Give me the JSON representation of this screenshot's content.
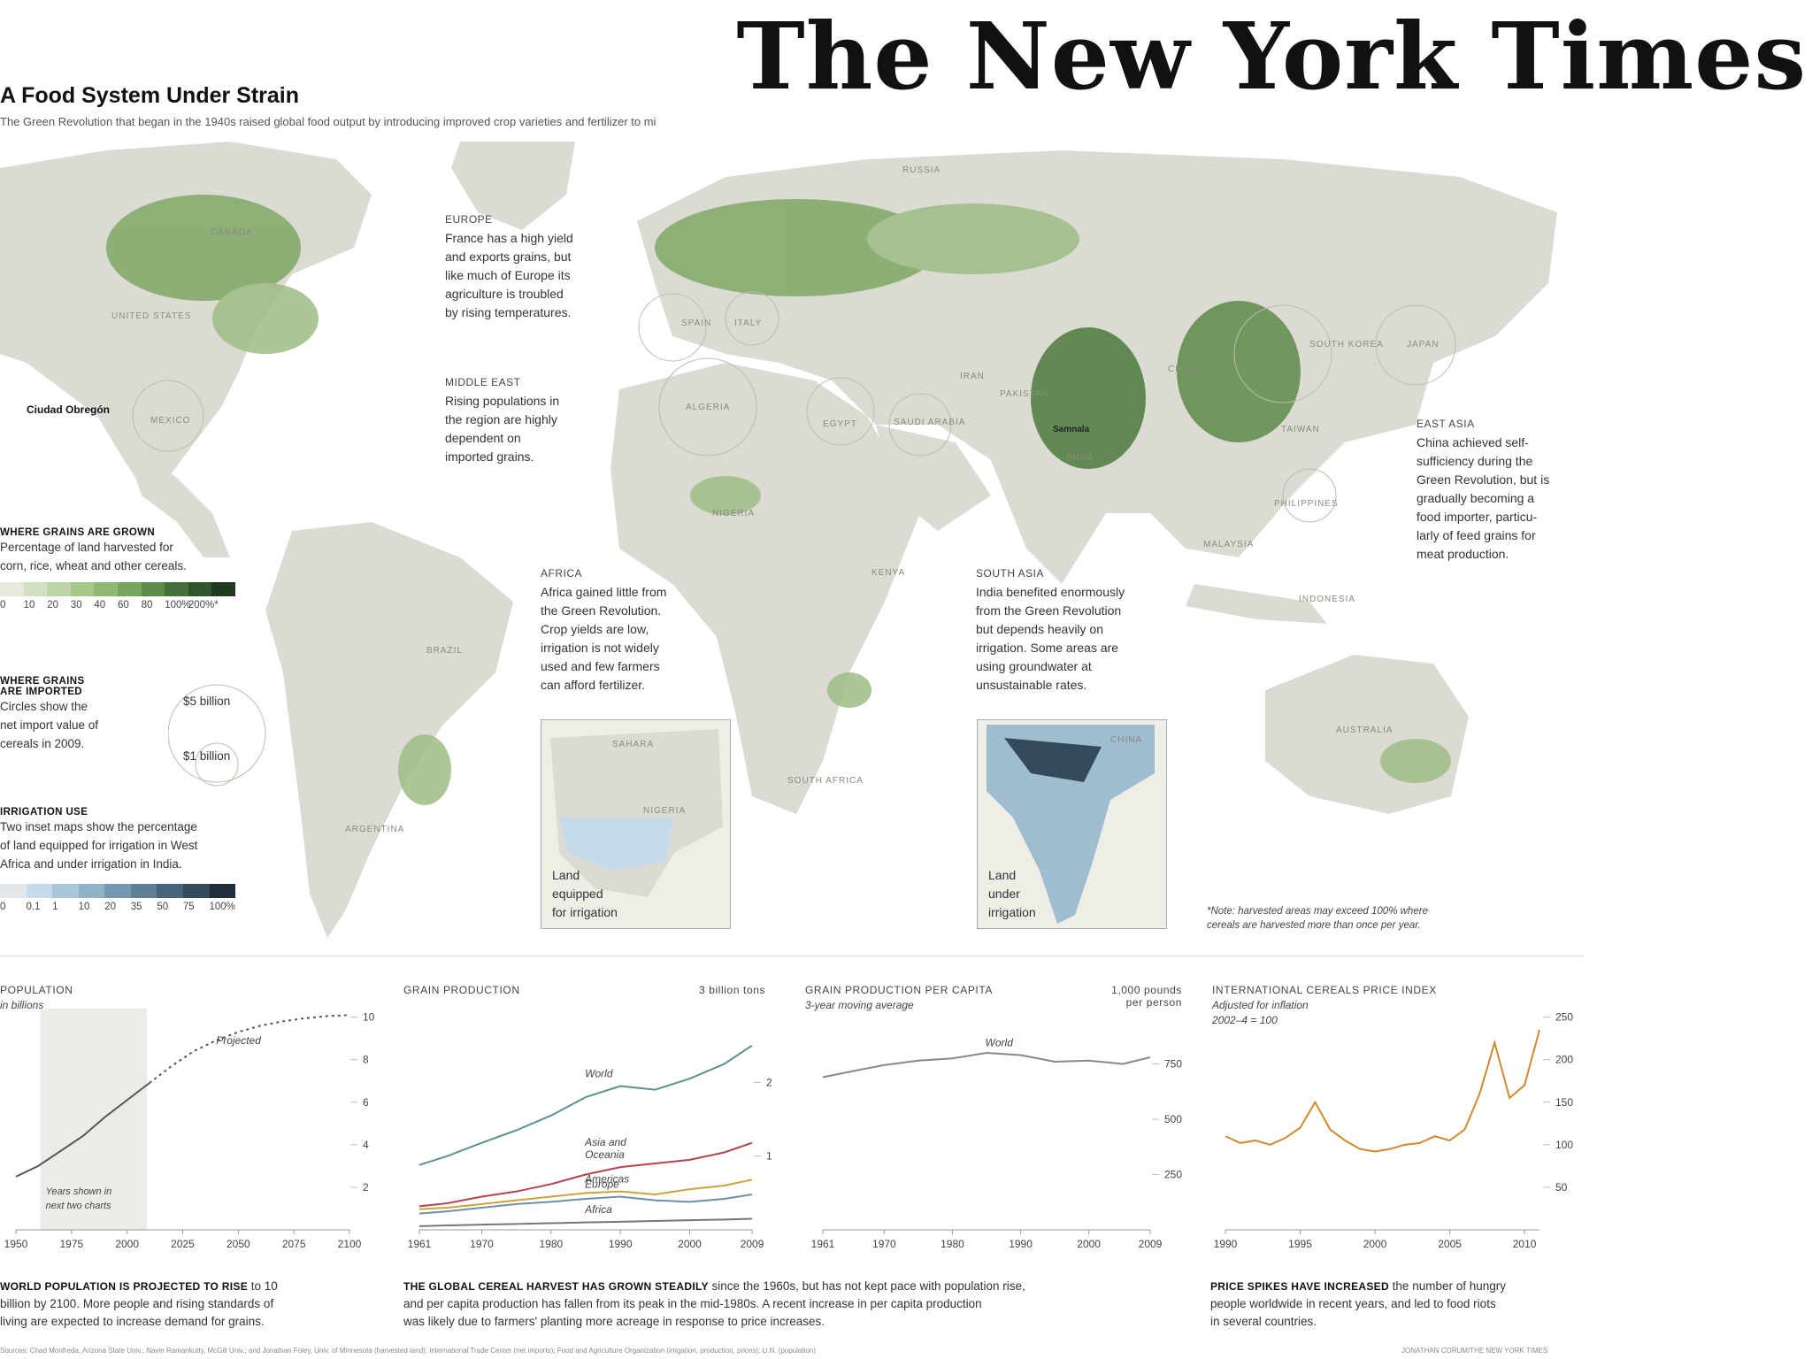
{
  "masthead": "The New York Times",
  "header": {
    "title": "A Food System Under Strain",
    "subtitle": "The Green Revolution that began in the 1940s raised global food output by introducing improved crop varieties and fertilizer to mi"
  },
  "map": {
    "countries": [
      "CANADA",
      "UNITED STATES",
      "MEXICO",
      "RUSSIA",
      "CHINA",
      "JAPAN",
      "SOUTH KOREA",
      "IRAN",
      "PAKISTAN",
      "INDIA",
      "EGYPT",
      "SAUDI ARABIA",
      "ALGERIA",
      "SPAIN",
      "ITALY",
      "NIGERIA",
      "KENYA",
      "SOUTH AFRICA",
      "BRAZIL",
      "ARGENTINA",
      "AUSTRALIA",
      "INDONESIA",
      "MALAYSIA",
      "PHILIPPINES",
      "TAIWAN"
    ],
    "place_label": "Ciudad Obregón",
    "place_label_2": "Samnala",
    "inset_africa_labels": [
      "SAHARA",
      "NIGERIA"
    ],
    "inset_africa_caption": [
      "Land",
      "equipped",
      "for irrigation"
    ],
    "inset_india_labels": [
      "CHINA"
    ],
    "inset_india_caption": [
      "Land",
      "under",
      "irrigation"
    ],
    "footnote": [
      "*Note: harvested areas may exceed 100% where",
      "cereals are harvested more than once per year."
    ]
  },
  "annotations": {
    "europe": {
      "head": "EUROPE",
      "lines": [
        "France has a high yield",
        "and exports grains, but",
        "like much of Europe its",
        "agriculture is troubled",
        "by rising temperatures."
      ]
    },
    "middle_east": {
      "head": "MIDDLE EAST",
      "lines": [
        "Rising populations in",
        "the region are highly",
        "dependent on",
        "imported grains."
      ]
    },
    "africa": {
      "head": "AFRICA",
      "lines": [
        "Africa gained little from",
        "the Green Revolution.",
        "Crop yields are low,",
        "irrigation is not widely",
        "used and few farmers",
        "can afford fertilizer."
      ]
    },
    "south_asia": {
      "head": "SOUTH ASIA",
      "lines": [
        "India benefited enormously",
        "from the Green Revolution",
        "but depends heavily on",
        "irrigation. Some areas are",
        "using groundwater at",
        "unsustainable rates."
      ]
    },
    "east_asia": {
      "head": "EAST ASIA",
      "lines": [
        "China achieved self-",
        "sufficiency during the",
        "Green Revolution, but is",
        "gradually becoming a",
        "food importer, particu-",
        "larly of feed grains for",
        "meat production."
      ]
    }
  },
  "legend": {
    "grains_head": "WHERE GRAINS ARE GROWN",
    "grains_text": [
      "Percentage of land harvested for",
      "corn, rice, wheat and other cereals."
    ],
    "grains_ticks": [
      "0",
      "10",
      "20",
      "30",
      "40",
      "60",
      "80",
      "100%",
      "200%*"
    ],
    "grains_colors": [
      "#e7e9df",
      "#d2e0c2",
      "#bdd4a5",
      "#a6c78a",
      "#8fb872",
      "#76a55c",
      "#5d8b49",
      "#44703a",
      "#2f552b",
      "#1f3a1e"
    ],
    "imports_head": [
      "WHERE GRAINS",
      "ARE IMPORTED"
    ],
    "imports_text": [
      "Circles show the",
      "net import value of",
      "cereals in 2009."
    ],
    "imports_big": "$5 billion",
    "imports_small": "$1 billion",
    "irrigation_head": "IRRIGATION USE",
    "irrigation_text": [
      "Two inset maps show the percentage",
      "of land equipped for irrigation in West",
      "Africa and under irrigation in India."
    ],
    "irrigation_ticks": [
      "0",
      "0.1",
      "1",
      "10",
      "20",
      "35",
      "50",
      "75",
      "100%"
    ],
    "irrigation_colors": [
      "#e4e7ea",
      "#c5dbe9",
      "#a9c8dc",
      "#8fb2c9",
      "#7598b0",
      "#5e7f96",
      "#48647a",
      "#33495c",
      "#1f2d3a"
    ]
  },
  "chart_data": [
    {
      "type": "line",
      "title": "POPULATION",
      "subtitle": "in billions",
      "x": [
        1950,
        1960,
        1970,
        1980,
        1990,
        2000,
        2010,
        2020,
        2030,
        2040,
        2050,
        2060,
        2070,
        2080,
        2090,
        2100
      ],
      "series": [
        {
          "name": "",
          "values": [
            2.5,
            3.0,
            3.7,
            4.4,
            5.3,
            6.1,
            6.9,
            7.7,
            8.4,
            8.9,
            9.3,
            9.6,
            9.8,
            9.95,
            10.05,
            10.1
          ]
        }
      ],
      "projected_from": 2010,
      "annotation_projected": "Projected",
      "shaded_range": [
        1961,
        2009
      ],
      "shaded_label": [
        "Years shown in",
        "next two charts"
      ],
      "x_ticks": [
        "1950",
        "1975",
        "2000",
        "2025",
        "2050",
        "2075",
        "2100"
      ],
      "y_ticks": [
        "2",
        "4",
        "6",
        "8",
        "10"
      ],
      "ylim": [
        0,
        10.4
      ]
    },
    {
      "type": "line",
      "title": "GRAIN PRODUCTION",
      "unit_label": "3 billion tons",
      "x": [
        1961,
        1965,
        1970,
        1975,
        1980,
        1985,
        1990,
        1995,
        2000,
        2005,
        2009
      ],
      "series": [
        {
          "name": "World",
          "values": [
            0.88,
            1.0,
            1.18,
            1.35,
            1.55,
            1.8,
            1.95,
            1.9,
            2.05,
            2.25,
            2.5
          ]
        },
        {
          "name": "Asia and Oceania",
          "values": [
            0.32,
            0.36,
            0.45,
            0.52,
            0.62,
            0.75,
            0.85,
            0.9,
            0.95,
            1.05,
            1.18
          ]
        },
        {
          "name": "Americas",
          "values": [
            0.28,
            0.3,
            0.35,
            0.4,
            0.45,
            0.5,
            0.52,
            0.48,
            0.55,
            0.6,
            0.68
          ]
        },
        {
          "name": "Europe",
          "values": [
            0.22,
            0.25,
            0.3,
            0.35,
            0.38,
            0.42,
            0.45,
            0.4,
            0.38,
            0.42,
            0.48
          ]
        },
        {
          "name": "Africa",
          "values": [
            0.05,
            0.06,
            0.07,
            0.08,
            0.09,
            0.1,
            0.11,
            0.12,
            0.13,
            0.14,
            0.15
          ]
        }
      ],
      "x_ticks": [
        "1961",
        "1970",
        "1980",
        "1990",
        "2000",
        "2009"
      ],
      "y_ticks": [
        "1",
        "2"
      ],
      "ylim": [
        0,
        3
      ]
    },
    {
      "type": "line",
      "title": "GRAIN PRODUCTION PER CAPITA",
      "subtitle": "3-year moving average",
      "unit_label": [
        "1,000 pounds",
        "per person"
      ],
      "x": [
        1961,
        1965,
        1970,
        1975,
        1980,
        1985,
        1990,
        1995,
        2000,
        2005,
        2009
      ],
      "series": [
        {
          "name": "World",
          "values": [
            690,
            715,
            745,
            765,
            775,
            800,
            790,
            760,
            765,
            750,
            780
          ]
        }
      ],
      "x_ticks": [
        "1961",
        "1970",
        "1980",
        "1990",
        "2000",
        "2009"
      ],
      "y_ticks": [
        "250",
        "500",
        "750"
      ],
      "ylim": [
        0,
        1000
      ]
    },
    {
      "type": "line",
      "title": "INTERNATIONAL CEREALS PRICE INDEX",
      "subtitle": [
        "Adjusted for inflation",
        "2002–4 = 100"
      ],
      "x": [
        1990,
        1991,
        1992,
        1993,
        1994,
        1995,
        1996,
        1997,
        1998,
        1999,
        2000,
        2001,
        2002,
        2003,
        2004,
        2005,
        2006,
        2007,
        2008,
        2009,
        2010,
        2011
      ],
      "series": [
        {
          "name": "",
          "values": [
            110,
            102,
            105,
            100,
            108,
            120,
            150,
            118,
            105,
            95,
            92,
            95,
            100,
            102,
            110,
            105,
            118,
            160,
            220,
            155,
            170,
            235
          ]
        }
      ],
      "x_ticks": [
        "1990",
        "1995",
        "2000",
        "2005",
        "2010"
      ],
      "y_ticks": [
        "50",
        "100",
        "150",
        "200",
        "250"
      ],
      "ylim": [
        0,
        260
      ]
    }
  ],
  "captions": {
    "population": {
      "bold": "WORLD POPULATION IS PROJECTED TO RISE",
      "lines": [
        " to 10",
        "billion by 2100. More people and rising standards of",
        "living are expected to increase demand for grains."
      ]
    },
    "grain": {
      "bold": "THE GLOBAL CEREAL HARVEST HAS GROWN STEADILY",
      "lines": [
        " since the 1960s, but has not kept pace with population rise,",
        "and per capita production has fallen from its peak in the mid-1980s. A recent increase in per capita production",
        "was likely due to farmers' planting more acreage in response to price increases."
      ]
    },
    "price": {
      "bold": "PRICE SPIKES HAVE INCREASED",
      "lines": [
        " the number of hungry",
        "people worldwide in recent years, and led to food riots",
        "in several countries."
      ]
    }
  },
  "source": "Sources: Chad Monfreda, Arizona State Univ.; Navin Ramankutty, McGill Univ.; and Jonathan Foley, Univ. of Minnesota (harvested land); International Trade Center (net imports); Food and Agriculture Organization (irrigation, production, prices); U.N. (population)",
  "credit": "JONATHAN CORUM/THE NEW YORK TIMES"
}
